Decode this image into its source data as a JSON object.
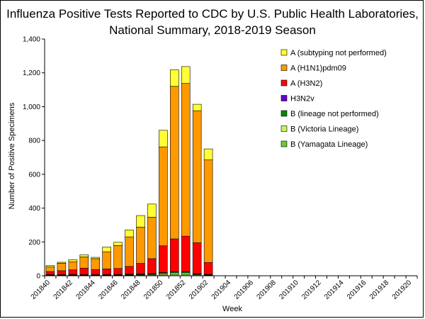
{
  "chart_data": {
    "type": "bar",
    "stacked": true,
    "title_line1": "Influenza Positive Tests Reported to CDC by U.S. Public Health Laboratories,",
    "title_line2": "National Summary, 2018-2019 Season",
    "xlabel": "Week",
    "ylabel": "Number of Positive Specimens",
    "ylim": [
      0,
      1400
    ],
    "yticks": [
      "0",
      "200",
      "400",
      "600",
      "800",
      "1,000",
      "1,200",
      "1,400"
    ],
    "ytick_values": [
      0,
      200,
      400,
      600,
      800,
      1000,
      1200,
      1400
    ],
    "categories": [
      "201840",
      "201841",
      "201842",
      "201843",
      "201844",
      "201845",
      "201846",
      "201847",
      "201848",
      "201849",
      "201850",
      "201851",
      "201852",
      "201901",
      "201902",
      "201903",
      "201904",
      "201905",
      "201906",
      "201907",
      "201908",
      "201909",
      "201910",
      "201911",
      "201912",
      "201913",
      "201914",
      "201915",
      "201916",
      "201917",
      "201918",
      "201919",
      "201920"
    ],
    "xtick_labels": [
      "201840",
      "201842",
      "201844",
      "201846",
      "201848",
      "201850",
      "201852",
      "201902",
      "201904",
      "201906",
      "201908",
      "201910",
      "201912",
      "201914",
      "201916",
      "201918",
      "201920"
    ],
    "series": [
      {
        "name": "B (Yamagata Lineage)",
        "color": "#66cc33",
        "values": [
          2,
          2,
          3,
          2,
          2,
          2,
          3,
          3,
          4,
          5,
          8,
          10,
          10,
          5,
          3,
          0,
          0,
          0,
          0,
          0,
          0,
          0,
          0,
          0,
          0,
          0,
          0,
          0,
          0,
          0,
          0,
          0,
          0
        ]
      },
      {
        "name": "B (Victoria Lineage)",
        "color": "#ccee66",
        "values": [
          2,
          2,
          2,
          2,
          2,
          2,
          2,
          3,
          3,
          4,
          6,
          8,
          8,
          4,
          2,
          0,
          0,
          0,
          0,
          0,
          0,
          0,
          0,
          0,
          0,
          0,
          0,
          0,
          0,
          0,
          0,
          0,
          0
        ]
      },
      {
        "name": "B (lineage not performed)",
        "color": "#008800",
        "values": [
          3,
          3,
          3,
          3,
          3,
          3,
          3,
          3,
          4,
          4,
          5,
          7,
          7,
          3,
          3,
          0,
          0,
          0,
          0,
          0,
          0,
          0,
          0,
          0,
          0,
          0,
          0,
          0,
          0,
          0,
          0,
          0,
          0
        ]
      },
      {
        "name": "H3N2v",
        "color": "#6600cc",
        "values": [
          0,
          0,
          0,
          0,
          0,
          0,
          0,
          0,
          0,
          0,
          0,
          0,
          0,
          0,
          0,
          0,
          0,
          0,
          0,
          0,
          0,
          0,
          0,
          0,
          0,
          0,
          0,
          0,
          0,
          0,
          0,
          0,
          0
        ]
      },
      {
        "name": "A (H3N2)",
        "color": "#ff0000",
        "values": [
          18,
          23,
          27,
          38,
          30,
          33,
          35,
          46,
          62,
          88,
          158,
          193,
          209,
          183,
          70,
          0,
          0,
          0,
          0,
          0,
          0,
          0,
          0,
          0,
          0,
          0,
          0,
          0,
          0,
          0,
          0,
          0,
          0
        ]
      },
      {
        "name": "A (H1N1)pdm09",
        "color": "#ff9900",
        "values": [
          27,
          44,
          48,
          67,
          64,
          102,
          136,
          175,
          215,
          245,
          585,
          902,
          903,
          781,
          607,
          0,
          0,
          0,
          0,
          0,
          0,
          0,
          0,
          0,
          0,
          0,
          0,
          0,
          0,
          0,
          0,
          0,
          0
        ]
      },
      {
        "name": "A (subtyping not performed)",
        "color": "#ffff33",
        "values": [
          8,
          6,
          12,
          12,
          8,
          28,
          19,
          41,
          68,
          78,
          98,
          98,
          100,
          38,
          65,
          0,
          0,
          0,
          0,
          0,
          0,
          0,
          0,
          0,
          0,
          0,
          0,
          0,
          0,
          0,
          0,
          0,
          0
        ]
      }
    ],
    "legend_position": "top-right",
    "legend_order": [
      "A (subtyping not performed)",
      "A (H1N1)pdm09",
      "A (H3N2)",
      "H3N2v",
      "B (lineage not performed)",
      "B (Victoria Lineage)",
      "B (Yamagata Lineage)"
    ]
  }
}
